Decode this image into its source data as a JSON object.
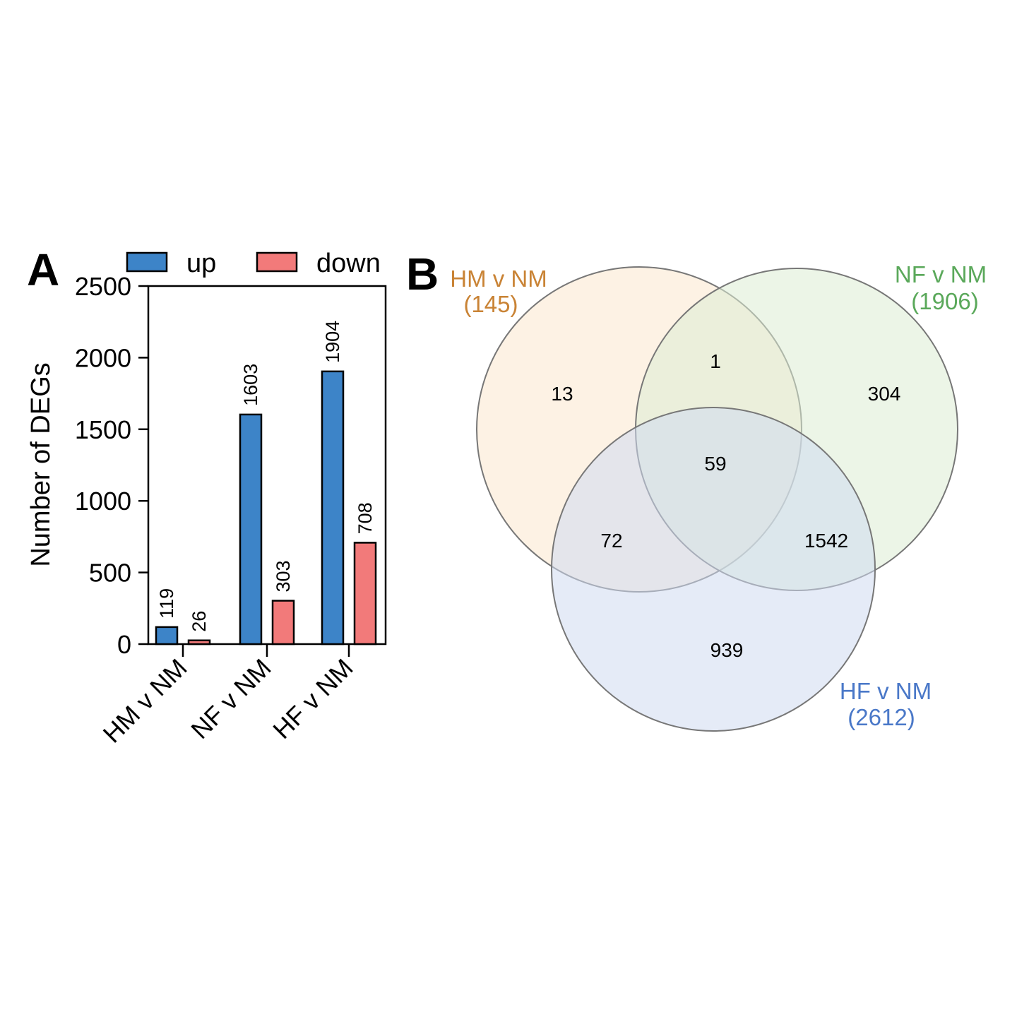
{
  "panel_a": {
    "letter": "A"
  },
  "panel_b": {
    "letter": "B"
  },
  "chart_data": [
    {
      "type": "bar",
      "title": "",
      "xlabel": "",
      "ylabel": "Number of DEGs",
      "categories": [
        "HM v NM",
        "NF v NM",
        "HF v NM"
      ],
      "series": [
        {
          "name": "up",
          "color": "#3d84c8",
          "values": [
            119,
            1603,
            1904
          ]
        },
        {
          "name": "down",
          "color": "#f27a7a",
          "values": [
            26,
            303,
            708
          ]
        }
      ],
      "data_labels": [
        [
          "119",
          "1603",
          "1904"
        ],
        [
          "26",
          "303",
          "708"
        ]
      ],
      "ylim": [
        0,
        2500
      ],
      "yticks": [
        0,
        500,
        1000,
        1500,
        2000,
        2500
      ],
      "legend_position": "top",
      "grid": false
    },
    {
      "type": "venn",
      "sets": [
        {
          "name": "HM v NM",
          "total": "(145)",
          "color": "#c98335",
          "fill": "#fbe7cd"
        },
        {
          "name": "NF v NM",
          "total": "(1906)",
          "color": "#5aa85a",
          "fill": "#dcecd4"
        },
        {
          "name": "HF v NM",
          "total": "(2612)",
          "color": "#4a78c8",
          "fill": "#cfdaf0"
        }
      ],
      "regions": {
        "hm_only": "13",
        "hm_nf": "1",
        "nf_only": "304",
        "hm_nf_hf": "59",
        "hm_hf": "72",
        "nf_hf": "1542",
        "hf_only": "939"
      }
    }
  ]
}
